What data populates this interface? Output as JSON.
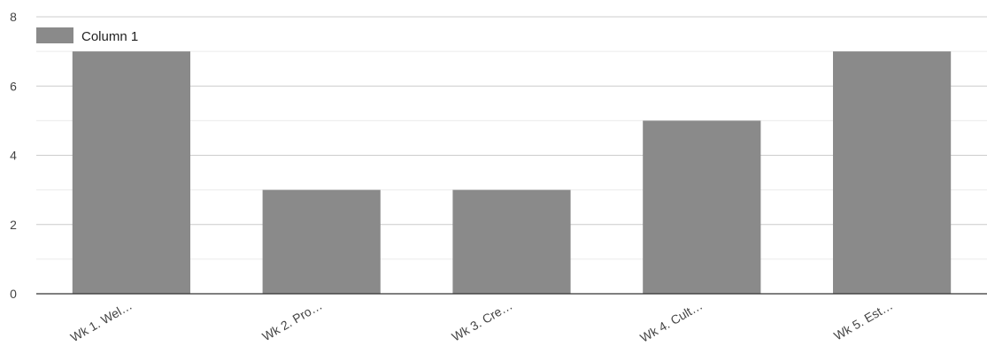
{
  "chart_data": {
    "type": "bar",
    "categories": [
      "Wk 1. Wel…",
      "Wk 2. Pro…",
      "Wk 3. Cre…",
      "Wk 4. Cult…",
      "Wk 5. Est…"
    ],
    "series": [
      {
        "name": "Column 1",
        "values": [
          7,
          3,
          3,
          5,
          7
        ]
      }
    ],
    "ylim": [
      0,
      8
    ],
    "yticks": [
      "0",
      "2",
      "4",
      "6",
      "8"
    ],
    "ytick_values": [
      0,
      2,
      4,
      6,
      8
    ],
    "minor_grid_values": [
      1,
      3,
      5,
      7
    ],
    "grid": true,
    "legend_position": "top-left",
    "title": "",
    "xlabel": "",
    "ylabel": "",
    "colors": {
      "bar": "#8a8a8a",
      "grid_major": "#cccccc",
      "grid_minor": "#ebebeb",
      "baseline": "#333333",
      "text": "#444444"
    }
  }
}
